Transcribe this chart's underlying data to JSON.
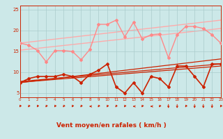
{
  "xlabel": "Vent moyen/en rafales ( km/h )",
  "xlim": [
    0,
    23
  ],
  "ylim": [
    4,
    26
  ],
  "yticks": [
    5,
    10,
    15,
    20,
    25
  ],
  "xticks": [
    0,
    1,
    2,
    3,
    4,
    5,
    6,
    7,
    8,
    9,
    10,
    11,
    12,
    13,
    14,
    15,
    16,
    17,
    18,
    19,
    20,
    21,
    22,
    23
  ],
  "background_color": "#cce8e8",
  "grid_color": "#aacccc",
  "series": [
    {
      "label": "trend_upper1",
      "x": [
        0,
        23
      ],
      "y": [
        17.0,
        22.5
      ],
      "color": "#ffaaaa",
      "lw": 1.0,
      "marker": null,
      "zorder": 1
    },
    {
      "label": "trend_upper2",
      "x": [
        0,
        23
      ],
      "y": [
        15.3,
        20.5
      ],
      "color": "#ffaaaa",
      "lw": 1.0,
      "marker": null,
      "zorder": 1
    },
    {
      "label": "trend_lower1",
      "x": [
        0,
        23
      ],
      "y": [
        7.5,
        13.2
      ],
      "color": "#cc2200",
      "lw": 0.9,
      "marker": null,
      "zorder": 2
    },
    {
      "label": "trend_lower2",
      "x": [
        0,
        23
      ],
      "y": [
        7.8,
        12.0
      ],
      "color": "#cc2200",
      "lw": 0.9,
      "marker": null,
      "zorder": 2
    },
    {
      "label": "trend_lower3",
      "x": [
        0,
        23
      ],
      "y": [
        7.6,
        11.5
      ],
      "color": "#cc2200",
      "lw": 0.9,
      "marker": null,
      "zorder": 2
    },
    {
      "label": "upper_line",
      "x": [
        0,
        1,
        2,
        3,
        4,
        5,
        6,
        7,
        8,
        9,
        10,
        11,
        12,
        13,
        14,
        15,
        16,
        17,
        18,
        19,
        20,
        21,
        22,
        23
      ],
      "y": [
        17.0,
        16.5,
        15.2,
        12.5,
        15.2,
        15.2,
        15.0,
        13.0,
        15.5,
        21.5,
        21.5,
        22.5,
        18.5,
        22.0,
        18.0,
        19.0,
        19.2,
        13.5,
        19.0,
        21.0,
        21.0,
        20.5,
        19.0,
        17.0
      ],
      "color": "#ff8888",
      "lw": 1.0,
      "marker": "D",
      "ms": 2.0,
      "zorder": 3
    },
    {
      "label": "lower_line",
      "x": [
        0,
        1,
        2,
        3,
        4,
        5,
        6,
        7,
        8,
        9,
        10,
        11,
        12,
        13,
        14,
        15,
        16,
        17,
        18,
        19,
        20,
        21,
        22,
        23
      ],
      "y": [
        7.5,
        8.5,
        9.0,
        9.0,
        9.0,
        9.5,
        9.0,
        7.5,
        9.5,
        10.5,
        12.0,
        6.5,
        5.0,
        7.5,
        5.0,
        9.0,
        8.5,
        6.5,
        11.5,
        11.5,
        9.0,
        6.5,
        12.0,
        12.0
      ],
      "color": "#cc2200",
      "lw": 1.2,
      "marker": "D",
      "ms": 2.0,
      "zorder": 4
    }
  ],
  "arrow_color": "#cc2200",
  "arrow_angles": [
    225,
    225,
    225,
    225,
    225,
    225,
    225,
    225,
    180,
    225,
    225,
    225,
    225,
    180,
    225,
    180,
    225,
    270,
    270,
    225,
    270,
    270,
    270,
    225
  ]
}
